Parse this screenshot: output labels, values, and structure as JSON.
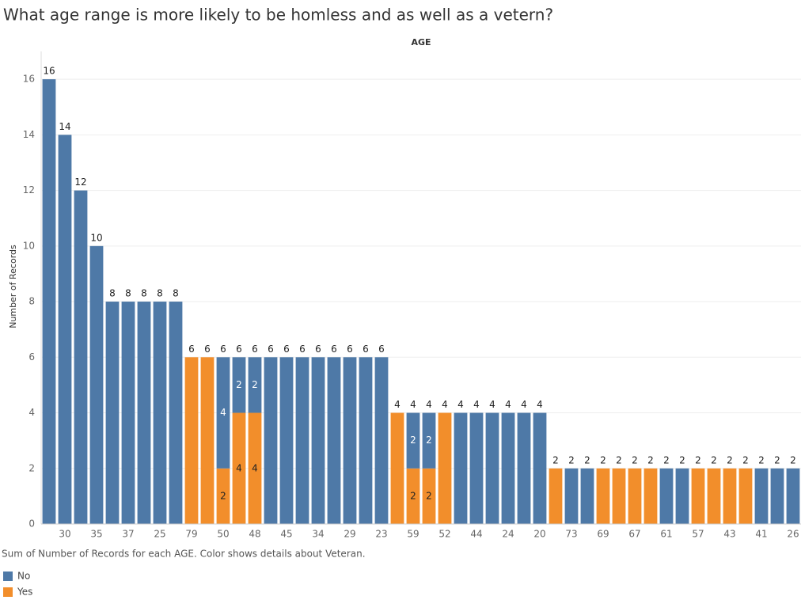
{
  "chart_data": {
    "type": "bar",
    "stacked": true,
    "title": "What age range is more likely to be homless and as well as a vetern?",
    "x_header": "AGE",
    "y_label": "Number of Records",
    "caption": "Sum of Number of Records for each AGE.  Color shows details about Veteran.",
    "categories": [
      null,
      "30",
      null,
      "35",
      null,
      "37",
      null,
      "25",
      null,
      "79",
      null,
      "50",
      null,
      "48",
      null,
      "45",
      null,
      "34",
      null,
      "29",
      null,
      "23",
      null,
      "59",
      null,
      "52",
      null,
      "44",
      null,
      "24",
      null,
      "20",
      null,
      "73",
      null,
      "69",
      null,
      "67",
      null,
      "61",
      null,
      "57",
      null,
      "43",
      null,
      "41",
      null,
      "26"
    ],
    "series": [
      {
        "name": "Yes",
        "color": "#f28e2b",
        "values": [
          null,
          null,
          null,
          null,
          null,
          null,
          null,
          null,
          null,
          6,
          6,
          2,
          4,
          4,
          null,
          null,
          null,
          null,
          null,
          null,
          null,
          null,
          4,
          2,
          2,
          4,
          null,
          null,
          null,
          null,
          null,
          null,
          2,
          null,
          null,
          2,
          2,
          2,
          2,
          null,
          null,
          2,
          2,
          2,
          2,
          null,
          null,
          null
        ]
      },
      {
        "name": "No",
        "color": "#4e79a7",
        "values": [
          16,
          14,
          12,
          10,
          8,
          8,
          8,
          8,
          8,
          null,
          null,
          4,
          2,
          2,
          6,
          6,
          6,
          6,
          6,
          6,
          6,
          6,
          null,
          2,
          2,
          null,
          4,
          4,
          4,
          4,
          4,
          4,
          null,
          2,
          2,
          null,
          null,
          null,
          null,
          2,
          2,
          null,
          null,
          null,
          null,
          2,
          2,
          2
        ]
      }
    ],
    "totals": [
      16,
      14,
      12,
      10,
      8,
      8,
      8,
      8,
      8,
      6,
      6,
      6,
      6,
      6,
      6,
      6,
      6,
      6,
      6,
      6,
      6,
      6,
      4,
      4,
      4,
      4,
      4,
      4,
      4,
      4,
      4,
      4,
      2,
      2,
      2,
      2,
      2,
      2,
      2,
      2,
      2,
      2,
      2,
      2,
      2,
      2,
      2,
      2
    ],
    "legend_order": [
      1,
      0
    ],
    "ylim": [
      0,
      17
    ],
    "yticks": [
      0,
      2,
      4,
      6,
      8,
      10,
      12,
      14,
      16
    ],
    "grid": true
  }
}
